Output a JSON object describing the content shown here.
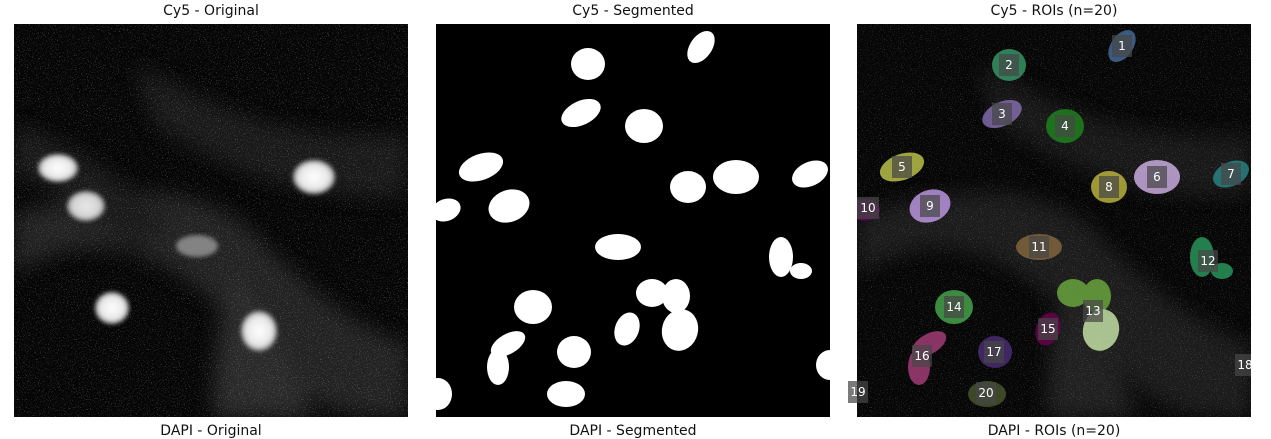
{
  "panels": [
    {
      "title": "Cy5 - Original"
    },
    {
      "title": "Cy5 - Segmented"
    },
    {
      "title": "Cy5 - ROIs (n=20)"
    }
  ],
  "bottom_titles": [
    "DAPI - Original",
    "DAPI - Segmented",
    "DAPI - ROIs (n=20)"
  ],
  "roi_labels": [
    "1",
    "2",
    "3",
    "4",
    "5",
    "6",
    "7",
    "8",
    "9",
    "10",
    "11",
    "12",
    "13",
    "14",
    "15",
    "16",
    "17",
    "18",
    "19",
    "20"
  ],
  "roi_colors": [
    "#4a6fa0",
    "#3aa06f",
    "#8a72b8",
    "#1f8a1f",
    "#c8d050",
    "#d8b8f0",
    "#2a8a8a",
    "#c8c040",
    "#c8a0f0",
    "#600060",
    "#8a6a40",
    "#2aa060",
    "#70b040",
    "#4ab050",
    "#700050",
    "#b04080",
    "#50307a",
    "#70703a",
    "#505050",
    "#4a5a30"
  ]
}
